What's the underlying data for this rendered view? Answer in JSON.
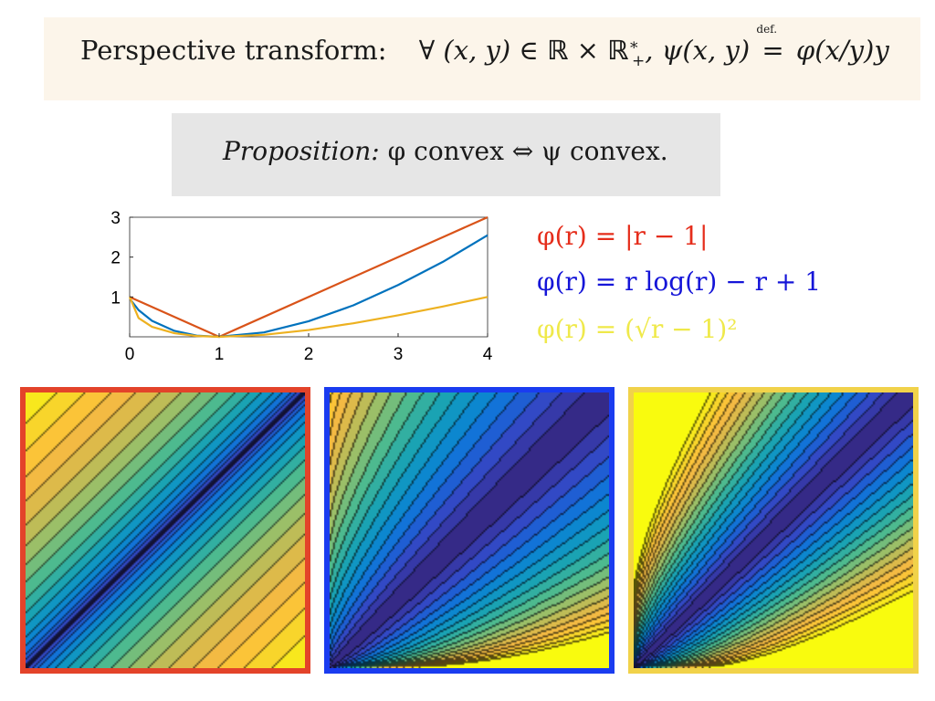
{
  "definition": {
    "label": "Perspective transform:",
    "formula_lhs": "∀ (x, y) ∈ ℝ × ℝ*₊, ψ(x, y)",
    "defsym": "def.",
    "formula_rhs": "φ(x/y)y"
  },
  "proposition": {
    "label": "Proposition:",
    "statement": "φ convex ⇔ ψ convex."
  },
  "colors": {
    "red": "#d95319",
    "blue": "#0072bd",
    "yellow": "#edb120",
    "legend_red": "#e52d1b",
    "legend_blue": "#1515d8",
    "legend_yellow": "#efe94a",
    "frame_red": "#e3432a",
    "frame_blue": "#1a3cf0",
    "frame_yellow": "#f1d24a"
  },
  "legend": [
    {
      "text": "φ(r) = |r − 1|",
      "color": "#e52d1b"
    },
    {
      "text": "φ(r) = r log(r) − r + 1",
      "color": "#1515d8"
    },
    {
      "text": "φ(r) = (√r − 1)²",
      "color": "#efe94a"
    }
  ],
  "chart_data": {
    "type": "line",
    "xlim": [
      0,
      4
    ],
    "ylim": [
      0,
      3
    ],
    "xticks": [
      "0",
      "1",
      "2",
      "3",
      "4"
    ],
    "yticks": [
      "1",
      "2",
      "3"
    ],
    "series": [
      {
        "color": "#d95319",
        "x": [
          0,
          1,
          4
        ],
        "y": [
          1,
          0,
          3
        ]
      },
      {
        "color": "#0072bd",
        "x": [
          0.02,
          0.1,
          0.25,
          0.5,
          0.75,
          1,
          1.5,
          2,
          2.5,
          3,
          3.5,
          4
        ],
        "y": [
          0.9,
          0.67,
          0.4,
          0.15,
          0.03,
          0,
          0.11,
          0.39,
          0.79,
          1.3,
          1.88,
          2.55
        ]
      },
      {
        "color": "#edb120",
        "x": [
          0,
          0.1,
          0.25,
          0.5,
          0.75,
          1,
          1.5,
          2,
          2.5,
          3,
          3.5,
          4
        ],
        "y": [
          1,
          0.47,
          0.25,
          0.09,
          0.02,
          0,
          0.05,
          0.17,
          0.34,
          0.54,
          0.76,
          1
        ]
      }
    ]
  },
  "panels": [
    {
      "frame": "#e3432a",
      "func": "abs"
    },
    {
      "frame": "#1a3cf0",
      "func": "kl"
    },
    {
      "frame": "#f1d24a",
      "func": "hell"
    }
  ]
}
